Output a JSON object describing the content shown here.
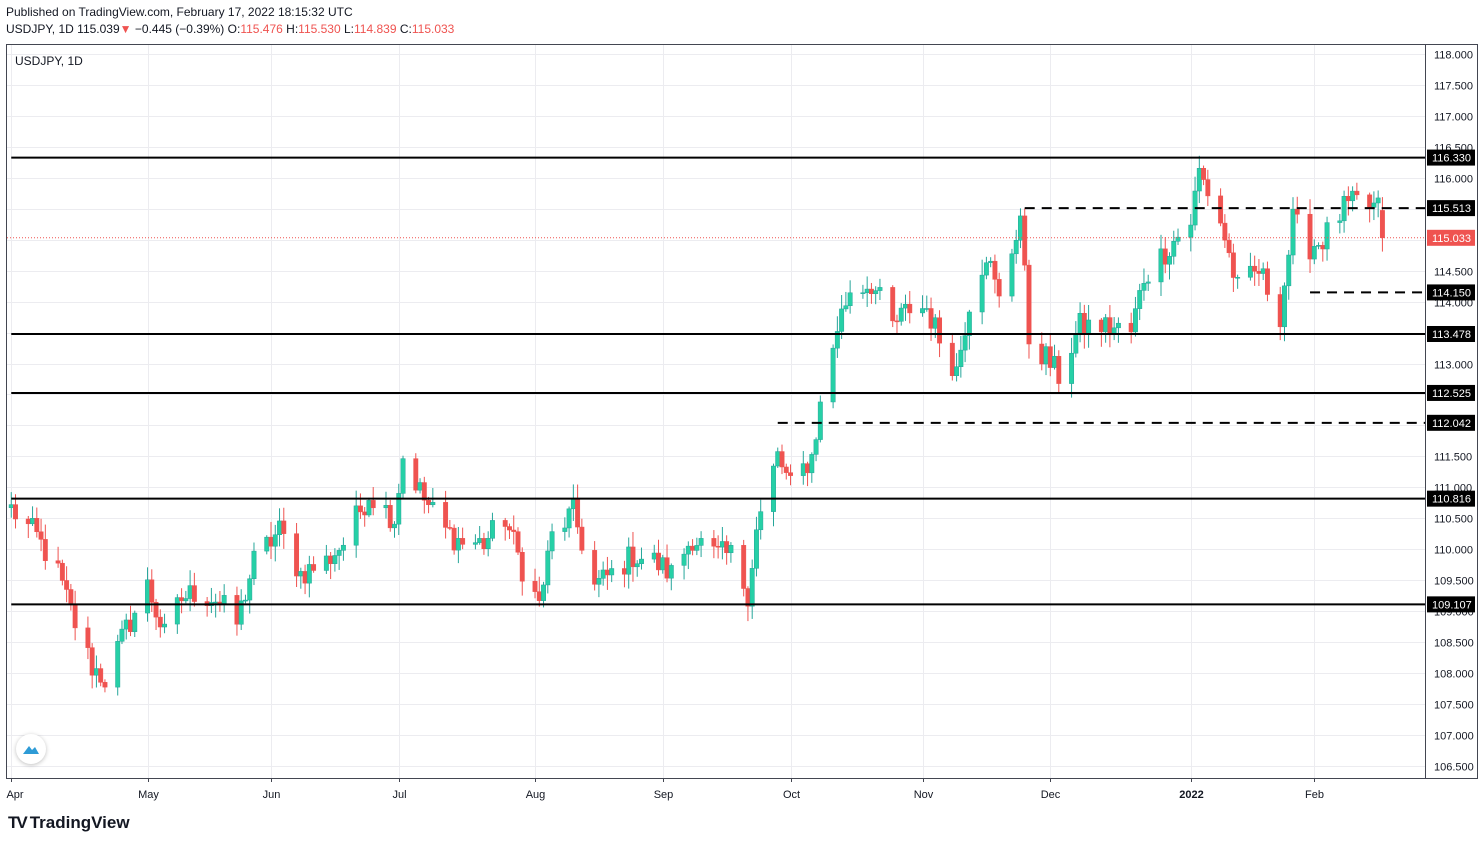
{
  "header": {
    "published": "Published on TradingView.com, February 17, 2022 18:15:32 UTC",
    "symbol": "USDJPY, 1D",
    "last": "115.039",
    "change_arrow": "▼",
    "change": "−0.445 (−0.39%)",
    "o_label": "O:",
    "o": "115.476",
    "h_label": "H:",
    "h": "115.530",
    "l_label": "L:",
    "l": "114.839",
    "c_label": "C:",
    "c": "115.033"
  },
  "brand": {
    "name": "TradingView",
    "logo": "TV"
  },
  "colors": {
    "up": "#26a69a",
    "upFill": "#26d0a6",
    "down": "#ef5350",
    "grid": "#ececf0",
    "level": "#000000",
    "current": "#ef5350"
  },
  "chart_data": {
    "type": "candlestick",
    "title": "USDJPY, 1D",
    "ylim": [
      106.3,
      118.15
    ],
    "y_ticks": [
      "106.500",
      "107.000",
      "107.500",
      "108.000",
      "108.500",
      "109.000",
      "109.500",
      "110.000",
      "110.500",
      "111.000",
      "111.500",
      "112.000",
      "112.500",
      "113.000",
      "113.500",
      "114.000",
      "114.500",
      "115.000",
      "115.500",
      "116.000",
      "116.500",
      "117.000",
      "117.500",
      "118.000"
    ],
    "x_ticks": [
      "Apr",
      "May",
      "Jun",
      "Jul",
      "Aug",
      "Sep",
      "Oct",
      "Nov",
      "Dec",
      "2022",
      "Feb"
    ],
    "grid": true,
    "current_price": {
      "value": 115.033,
      "label": "115.033"
    },
    "levels": [
      {
        "value": 116.33,
        "label": "116.330",
        "style": "solid",
        "from": "2021-04-01"
      },
      {
        "value": 115.513,
        "label": "115.513",
        "style": "dashed",
        "from": "2021-11-25"
      },
      {
        "value": 114.15,
        "label": "114.150",
        "style": "dashed",
        "from": "2022-01-31"
      },
      {
        "value": 113.478,
        "label": "113.478",
        "style": "solid",
        "from": "2021-04-01"
      },
      {
        "value": 112.525,
        "label": "112.525",
        "style": "solid",
        "from": "2021-04-01"
      },
      {
        "value": 112.042,
        "label": "112.042",
        "style": "dashed",
        "from": "2021-09-28"
      },
      {
        "value": 110.816,
        "label": "110.816",
        "style": "solid",
        "from": "2021-04-01"
      },
      {
        "value": 109.107,
        "label": "109.107",
        "style": "solid",
        "from": "2021-04-01"
      }
    ],
    "anchors": [
      [
        "2021-04-01",
        110.65
      ],
      [
        "2021-04-07",
        110.2
      ],
      [
        "2021-04-12",
        109.6
      ],
      [
        "2021-04-16",
        108.8
      ],
      [
        "2021-04-20",
        108.1
      ],
      [
        "2021-04-23",
        107.9
      ],
      [
        "2021-04-28",
        108.7
      ],
      [
        "2021-05-03",
        109.4
      ],
      [
        "2021-05-07",
        108.6
      ],
      [
        "2021-05-11",
        109.2
      ],
      [
        "2021-05-14",
        109.3
      ],
      [
        "2021-05-19",
        109.2
      ],
      [
        "2021-05-24",
        108.8
      ],
      [
        "2021-05-28",
        109.8
      ],
      [
        "2021-06-03",
        110.3
      ],
      [
        "2021-06-08",
        109.6
      ],
      [
        "2021-06-14",
        109.8
      ],
      [
        "2021-06-18",
        110.1
      ],
      [
        "2021-06-24",
        110.9
      ],
      [
        "2021-06-30",
        110.5
      ],
      [
        "2021-07-02",
        111.5
      ],
      [
        "2021-07-07",
        110.8
      ],
      [
        "2021-07-12",
        110.3
      ],
      [
        "2021-07-16",
        110.1
      ],
      [
        "2021-07-21",
        110.1
      ],
      [
        "2021-07-26",
        110.5
      ],
      [
        "2021-07-30",
        109.7
      ],
      [
        "2021-08-03",
        109.1
      ],
      [
        "2021-08-06",
        110.2
      ],
      [
        "2021-08-11",
        110.6
      ],
      [
        "2021-08-16",
        109.4
      ],
      [
        "2021-08-20",
        109.6
      ],
      [
        "2021-08-25",
        109.9
      ],
      [
        "2021-08-30",
        109.8
      ],
      [
        "2021-09-03",
        109.6
      ],
      [
        "2021-09-08",
        110.2
      ],
      [
        "2021-09-13",
        109.9
      ],
      [
        "2021-09-17",
        109.9
      ],
      [
        "2021-09-21",
        109.3
      ],
      [
        "2021-09-23",
        110.3
      ],
      [
        "2021-09-28",
        111.5
      ],
      [
        "2021-10-01",
        111.0
      ],
      [
        "2021-10-06",
        111.5
      ],
      [
        "2021-10-08",
        112.3
      ],
      [
        "2021-10-12",
        113.6
      ],
      [
        "2021-10-15",
        114.2
      ],
      [
        "2021-10-20",
        114.3
      ],
      [
        "2021-10-25",
        113.6
      ],
      [
        "2021-10-29",
        113.9
      ],
      [
        "2021-11-02",
        113.9
      ],
      [
        "2021-11-05",
        113.4
      ],
      [
        "2021-11-09",
        112.9
      ],
      [
        "2021-11-12",
        114.0
      ],
      [
        "2021-11-16",
        114.8
      ],
      [
        "2021-11-19",
        114.0
      ],
      [
        "2021-11-24",
        115.4
      ],
      [
        "2021-11-26",
        113.4
      ],
      [
        "2021-11-30",
        113.1
      ],
      [
        "2021-12-03",
        112.8
      ],
      [
        "2021-12-08",
        113.6
      ],
      [
        "2021-12-14",
        113.6
      ],
      [
        "2021-12-20",
        113.5
      ],
      [
        "2021-12-23",
        114.4
      ],
      [
        "2021-12-29",
        114.9
      ],
      [
        "2022-01-03",
        115.3
      ],
      [
        "2022-01-05",
        116.1
      ],
      [
        "2022-01-10",
        115.3
      ],
      [
        "2022-01-14",
        114.2
      ],
      [
        "2022-01-19",
        114.5
      ],
      [
        "2022-01-24",
        113.8
      ],
      [
        "2022-01-27",
        115.3
      ],
      [
        "2022-01-31",
        114.9
      ],
      [
        "2022-02-03",
        115.0
      ],
      [
        "2022-02-08",
        115.5
      ],
      [
        "2022-02-11",
        115.6
      ],
      [
        "2022-02-16",
        115.5
      ],
      [
        "2022-02-17",
        115.03
      ]
    ]
  }
}
